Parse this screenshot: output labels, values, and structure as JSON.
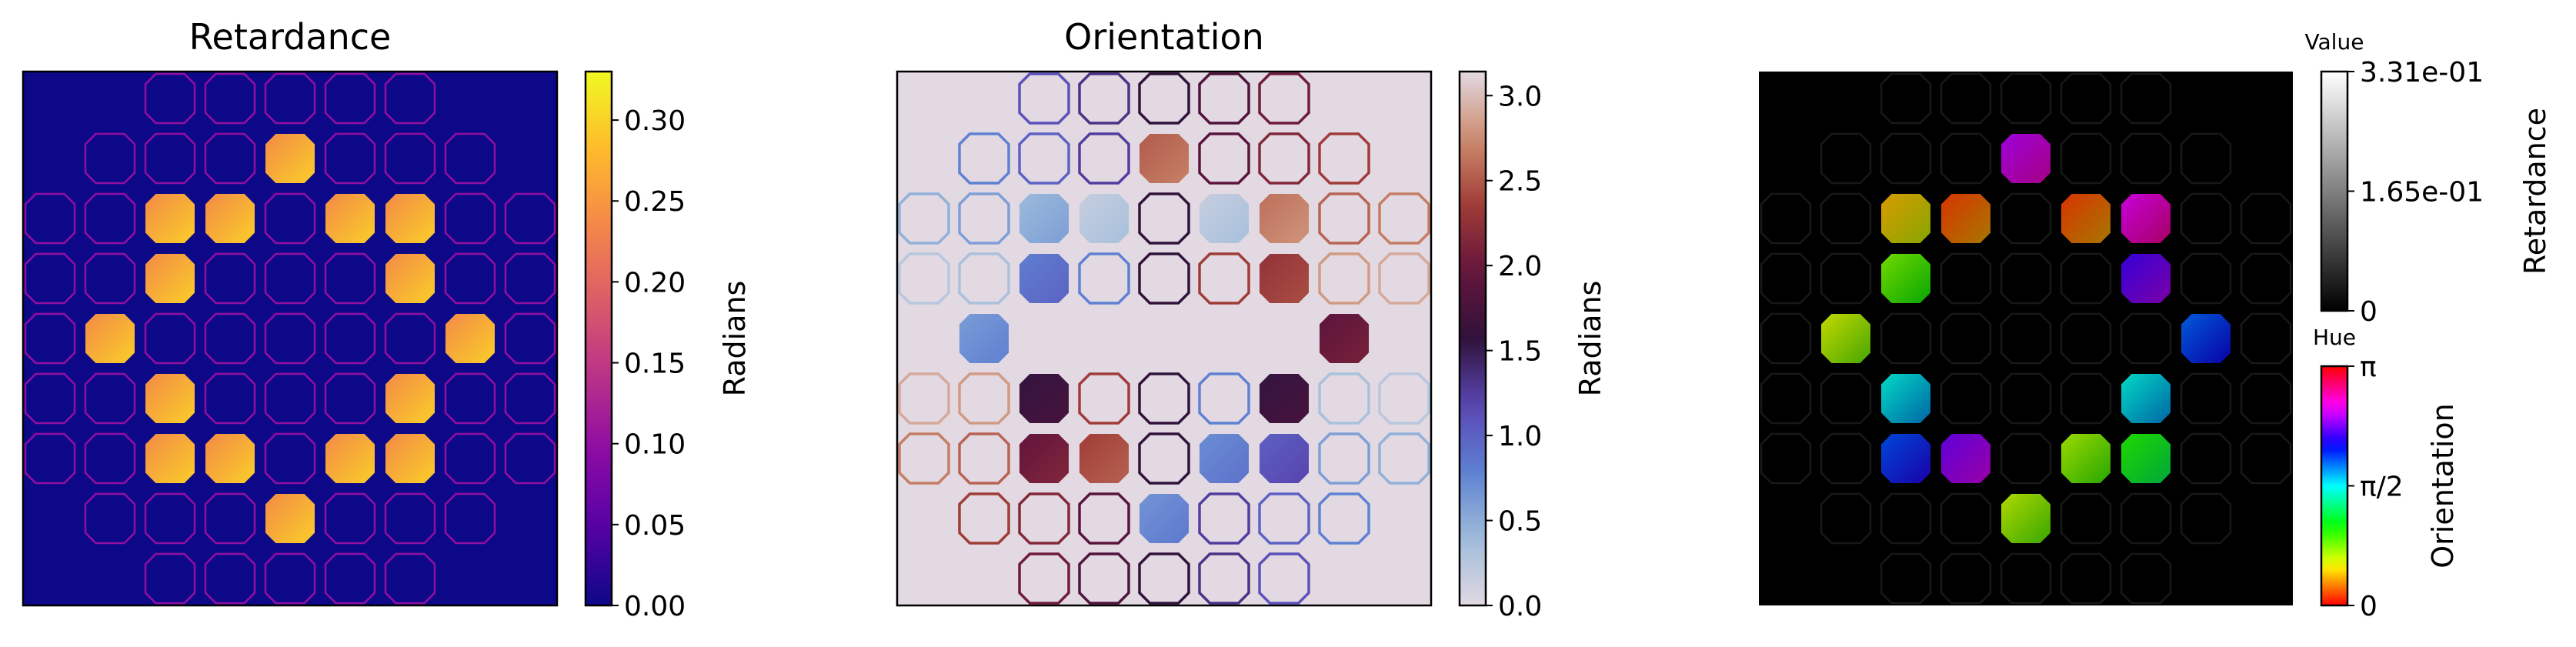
{
  "chart_data": [
    {
      "type": "heatmap",
      "title": "Retardance",
      "colormap": "plasma",
      "colorbar": {
        "label": "Radians",
        "range": [
          0,
          0.33
        ],
        "ticks": [
          0,
          0.05,
          0.1,
          0.15,
          0.2,
          0.25,
          0.3
        ],
        "tick_labels": [
          "0.00",
          "0.05",
          "0.10",
          "0.15",
          "0.20",
          "0.25",
          "0.30"
        ]
      },
      "background_value": 0,
      "axes_ticks": false
    },
    {
      "type": "heatmap",
      "title": "Orientation",
      "colormap": "twilight",
      "colorbar": {
        "label": "Radians",
        "range": [
          0,
          3.1416
        ],
        "ticks": [
          0,
          0.5,
          1,
          1.5,
          2,
          2.5,
          3
        ],
        "tick_labels": [
          "0.0",
          "0.5",
          "1.0",
          "1.5",
          "2.0",
          "2.5",
          "3.0"
        ]
      },
      "background_value": 0,
      "axes_ticks": false
    },
    {
      "type": "heatmap",
      "title": "",
      "colormap": "hsv (hue = orientation, value = retardance)",
      "background": "#000000",
      "colorbars": [
        {
          "name": "Value",
          "label": "Retardance",
          "colormap": "gray",
          "range": [
            0,
            0.331
          ],
          "tick_labels": [
            "0",
            "1.65e-01",
            "3.31e-01"
          ]
        },
        {
          "name": "Hue",
          "label": "Orientation",
          "colormap": "hsv",
          "range": [
            0,
            3.1416
          ],
          "tick_labels": [
            "0",
            "π/2",
            "π"
          ]
        }
      ],
      "axes_ticks": false
    }
  ],
  "grid": {
    "rows": [
      [
        0,
        0,
        0,
        0,
        1,
        0,
        0,
        0,
        0
      ],
      [
        0,
        0,
        1,
        1,
        0,
        1,
        1,
        0,
        0
      ],
      [
        0,
        0,
        1,
        0,
        0,
        0,
        1,
        0,
        0
      ],
      [
        0,
        1,
        0,
        0,
        0,
        0,
        0,
        1,
        0
      ],
      [
        0,
        0,
        1,
        0,
        0,
        0,
        1,
        0,
        0
      ],
      [
        0,
        0,
        1,
        1,
        0,
        1,
        1,
        0,
        0
      ],
      [
        0,
        0,
        0,
        0,
        1,
        0,
        0,
        0,
        0
      ]
    ],
    "filled_orientation": [
      [
        null,
        null,
        null,
        null,
        2.6,
        null,
        null,
        null,
        null
      ],
      [
        null,
        null,
        0.5,
        0.25,
        null,
        0.25,
        2.7,
        null,
        null
      ],
      [
        null,
        null,
        0.9,
        null,
        null,
        null,
        2.35,
        null,
        null
      ],
      [
        null,
        0.7,
        null,
        null,
        null,
        null,
        null,
        2.0,
        null
      ],
      [
        null,
        null,
        1.65,
        null,
        null,
        null,
        1.65,
        null,
        null
      ],
      [
        null,
        null,
        2.05,
        2.45,
        null,
        0.8,
        1.1,
        null,
        null
      ],
      [
        null,
        null,
        null,
        null,
        0.75,
        null,
        null,
        null,
        null
      ]
    ]
  }
}
